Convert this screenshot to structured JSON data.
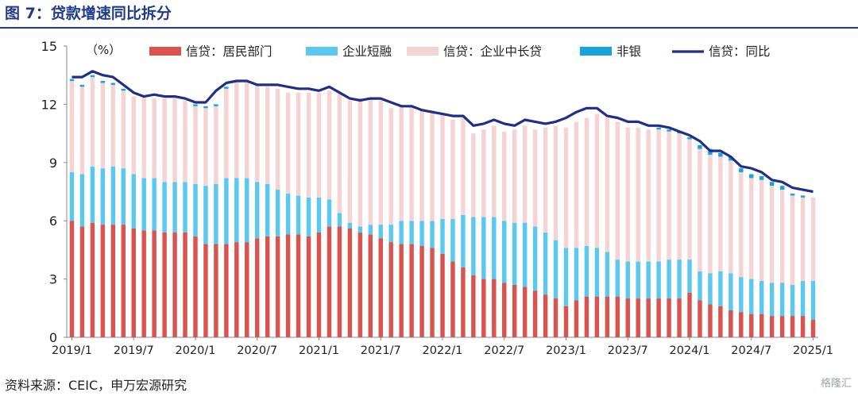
{
  "header": {
    "title": "图 7：贷款增速同比拆分"
  },
  "footer": {
    "source": "资料来源：CEIC，申万宏源研究",
    "brand": "格隆汇"
  },
  "chart_data": {
    "type": "bar",
    "stacked": true,
    "unit_label": "（%）",
    "ylim": [
      0,
      15
    ],
    "yticks": [
      0,
      3,
      6,
      9,
      12,
      15
    ],
    "xtick_labels": [
      "2019/1",
      "2019/7",
      "2020/1",
      "2020/7",
      "2021/1",
      "2021/7",
      "2022/1",
      "2022/7",
      "2023/1",
      "2023/7",
      "2024/1",
      "2024/7",
      "2025/1"
    ],
    "legend_position": "top",
    "colors": {
      "household": "#d9534f",
      "corporate_short": "#5bc8ef",
      "corporate_long": "#f6d3d3",
      "nonbank": "#1aa3d9",
      "total": "#1f2f86"
    },
    "categories": [
      "2019/1",
      "2019/2",
      "2019/3",
      "2019/4",
      "2019/5",
      "2019/6",
      "2019/7",
      "2019/8",
      "2019/9",
      "2019/10",
      "2019/11",
      "2019/12",
      "2020/1",
      "2020/2",
      "2020/3",
      "2020/4",
      "2020/5",
      "2020/6",
      "2020/7",
      "2020/8",
      "2020/9",
      "2020/10",
      "2020/11",
      "2020/12",
      "2021/1",
      "2021/2",
      "2021/3",
      "2021/4",
      "2021/5",
      "2021/6",
      "2021/7",
      "2021/8",
      "2021/9",
      "2021/10",
      "2021/11",
      "2021/12",
      "2022/1",
      "2022/2",
      "2022/3",
      "2022/4",
      "2022/5",
      "2022/6",
      "2022/7",
      "2022/8",
      "2022/9",
      "2022/10",
      "2022/11",
      "2022/12",
      "2023/1",
      "2023/2",
      "2023/3",
      "2023/4",
      "2023/5",
      "2023/6",
      "2023/7",
      "2023/8",
      "2023/9",
      "2023/10",
      "2023/11",
      "2023/12",
      "2024/1",
      "2024/2",
      "2024/3",
      "2024/4",
      "2024/5",
      "2024/6",
      "2024/7",
      "2024/8",
      "2024/9",
      "2024/10",
      "2024/11",
      "2024/12",
      "2025/1"
    ],
    "series": [
      {
        "name": "信贷：居民部门",
        "key": "household",
        "kind": "bar",
        "values": [
          6.0,
          5.7,
          5.9,
          5.8,
          5.8,
          5.8,
          5.6,
          5.5,
          5.5,
          5.4,
          5.4,
          5.4,
          5.2,
          4.8,
          4.8,
          4.8,
          4.9,
          4.9,
          5.1,
          5.2,
          5.2,
          5.3,
          5.3,
          5.2,
          5.4,
          5.7,
          5.7,
          5.6,
          5.4,
          5.3,
          5.1,
          4.9,
          4.8,
          4.8,
          4.7,
          4.6,
          4.3,
          3.9,
          3.6,
          3.2,
          3.0,
          3.0,
          2.8,
          2.7,
          2.6,
          2.4,
          2.2,
          2.0,
          1.6,
          1.9,
          2.1,
          2.1,
          2.1,
          2.1,
          2.0,
          2.0,
          2.0,
          2.0,
          2.0,
          2.0,
          2.3,
          1.9,
          1.7,
          1.6,
          1.4,
          1.3,
          1.2,
          1.2,
          1.1,
          1.1,
          1.1,
          1.1,
          0.9
        ]
      },
      {
        "name": "企业短融",
        "key": "corporate_short",
        "kind": "bar",
        "values": [
          2.5,
          2.7,
          2.9,
          2.9,
          3.0,
          2.9,
          2.8,
          2.7,
          2.7,
          2.6,
          2.6,
          2.6,
          2.7,
          3.0,
          3.1,
          3.4,
          3.3,
          3.3,
          2.9,
          2.7,
          2.4,
          2.1,
          2.0,
          2.0,
          1.8,
          1.4,
          0.7,
          0.3,
          0.3,
          0.5,
          0.7,
          0.9,
          1.2,
          1.2,
          1.3,
          1.4,
          1.8,
          2.2,
          2.7,
          3.0,
          3.2,
          3.2,
          3.2,
          3.2,
          3.3,
          3.3,
          3.2,
          3.0,
          3.0,
          2.7,
          2.6,
          2.5,
          2.3,
          1.9,
          1.9,
          1.9,
          1.9,
          1.9,
          2.0,
          2.0,
          1.7,
          1.5,
          1.6,
          1.8,
          1.9,
          1.8,
          1.8,
          1.7,
          1.7,
          1.7,
          1.6,
          1.8,
          2.0
        ]
      },
      {
        "name": "信贷：企业中长贷",
        "key": "corporate_long",
        "kind": "bar",
        "values": [
          4.7,
          4.5,
          4.6,
          4.4,
          4.2,
          4.0,
          4.0,
          4.2,
          4.1,
          4.3,
          4.3,
          4.2,
          4.0,
          4.0,
          4.0,
          4.6,
          5.0,
          5.0,
          5.0,
          5.0,
          5.2,
          5.2,
          5.3,
          5.4,
          5.4,
          5.6,
          6.2,
          6.3,
          6.6,
          6.5,
          6.4,
          6.0,
          5.9,
          5.9,
          5.7,
          5.7,
          5.4,
          5.1,
          5.0,
          4.3,
          4.5,
          4.7,
          4.6,
          4.8,
          5.0,
          5.0,
          5.4,
          5.9,
          6.2,
          6.5,
          6.6,
          6.9,
          6.9,
          7.1,
          6.9,
          6.9,
          6.8,
          6.8,
          6.6,
          6.5,
          6.2,
          6.3,
          6.1,
          5.9,
          5.8,
          5.4,
          5.2,
          5.2,
          5.0,
          4.8,
          4.6,
          4.3,
          4.3
        ]
      },
      {
        "name": "非银",
        "key": "nonbank",
        "kind": "bar",
        "values": [
          0.1,
          0.1,
          0.1,
          0.1,
          0.1,
          0.1,
          0.0,
          0.0,
          0.0,
          0.0,
          0.0,
          0.0,
          0.1,
          0.1,
          0.1,
          0.1,
          0.0,
          0.0,
          0.0,
          0.0,
          0.0,
          0.0,
          0.0,
          0.0,
          0.0,
          0.0,
          0.0,
          0.0,
          0.0,
          0.0,
          0.0,
          0.0,
          0.0,
          0.0,
          0.0,
          0.0,
          0.0,
          0.0,
          0.0,
          0.0,
          0.0,
          0.0,
          0.0,
          0.0,
          0.0,
          0.0,
          0.0,
          0.0,
          0.0,
          0.0,
          0.0,
          0.0,
          0.0,
          0.0,
          0.0,
          0.0,
          0.0,
          0.1,
          0.1,
          0.1,
          0.1,
          0.2,
          0.3,
          0.2,
          0.2,
          0.2,
          0.2,
          0.2,
          0.2,
          0.2,
          0.1,
          0.1,
          0.0
        ]
      },
      {
        "name": "信贷：同比",
        "key": "total",
        "kind": "line",
        "values": [
          13.4,
          13.4,
          13.7,
          13.5,
          13.4,
          13.0,
          12.6,
          12.4,
          12.5,
          12.4,
          12.4,
          12.3,
          12.1,
          12.1,
          12.7,
          13.1,
          13.2,
          13.2,
          13.0,
          13.0,
          13.0,
          12.9,
          12.8,
          12.8,
          12.7,
          12.9,
          12.6,
          12.3,
          12.2,
          12.3,
          12.3,
          12.1,
          11.9,
          11.9,
          11.7,
          11.6,
          11.5,
          11.4,
          11.4,
          10.9,
          11.0,
          11.2,
          11.0,
          10.9,
          11.2,
          11.1,
          11.0,
          11.1,
          11.3,
          11.6,
          11.8,
          11.8,
          11.4,
          11.3,
          11.1,
          11.1,
          10.9,
          10.9,
          10.8,
          10.6,
          10.4,
          10.1,
          9.6,
          9.6,
          9.3,
          8.8,
          8.7,
          8.5,
          8.1,
          8.0,
          7.7,
          7.6,
          7.5
        ]
      }
    ]
  }
}
